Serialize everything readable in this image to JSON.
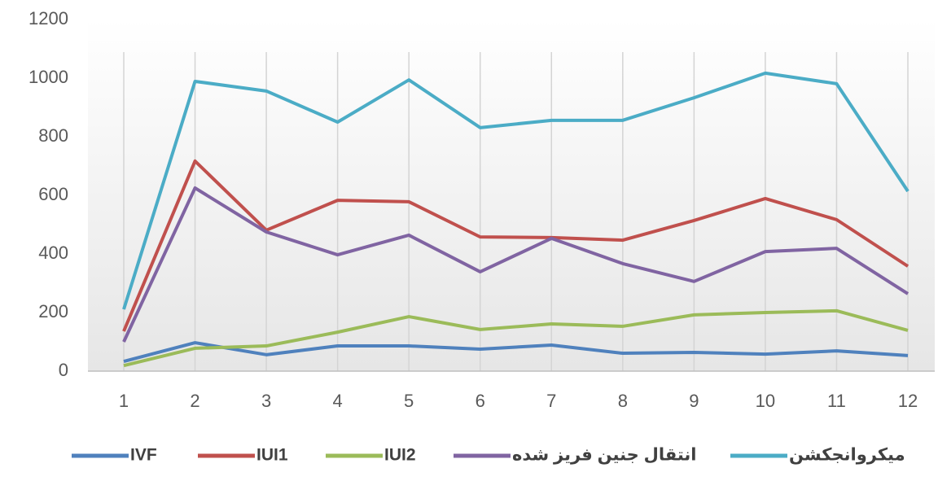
{
  "chart_data": {
    "type": "line",
    "categories": [
      "1",
      "2",
      "3",
      "4",
      "5",
      "6",
      "7",
      "8",
      "9",
      "10",
      "11",
      "12"
    ],
    "series": [
      {
        "name": "IVF",
        "color": "#4f81bd",
        "values": [
          33,
          97,
          56,
          86,
          86,
          75,
          89,
          61,
          64,
          58,
          69,
          53
        ]
      },
      {
        "name": "IUI1",
        "color": "#c0504d",
        "values": [
          136,
          717,
          481,
          583,
          578,
          458,
          456,
          447,
          514,
          589,
          517,
          358
        ]
      },
      {
        "name": "IUI2",
        "color": "#9bbb59",
        "values": [
          19,
          78,
          86,
          133,
          186,
          142,
          161,
          153,
          192,
          200,
          206,
          139
        ]
      },
      {
        "name": "انتقال جنین فریز شده",
        "color": "#8064a2",
        "values": [
          100,
          625,
          475,
          397,
          464,
          339,
          453,
          367,
          306,
          408,
          419,
          264
        ]
      },
      {
        "name": "میکروانجکشن",
        "color": "#4bacc6",
        "values": [
          211,
          989,
          956,
          850,
          994,
          831,
          856,
          856,
          933,
          1017,
          981,
          614
        ]
      }
    ],
    "ylim": [
      0,
      1200
    ],
    "yticks": [
      0,
      200,
      400,
      600,
      800,
      1000,
      1200
    ],
    "grid": "x",
    "legend": "bottom"
  }
}
